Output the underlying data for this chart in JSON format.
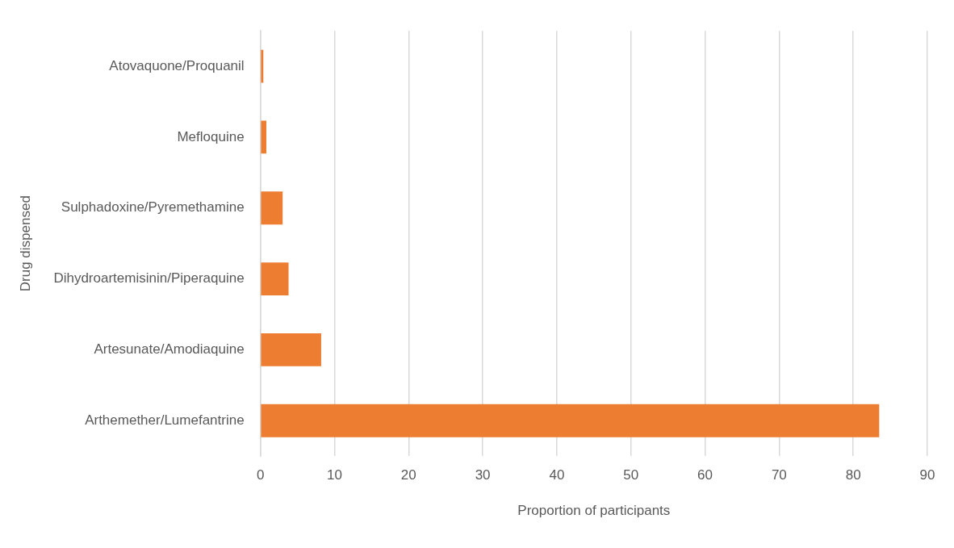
{
  "chart_data": {
    "type": "bar",
    "orientation": "horizontal",
    "categories": [
      "Atovaquone/Proquanil",
      "Mefloquine",
      "Sulphadoxine/Pyremethamine",
      "Dihydroartemisinin/Piperaquine",
      "Artesunate/Amodiaquine",
      "Arthemether/Lumefantrine"
    ],
    "values": [
      0.4,
      0.8,
      3.0,
      3.8,
      8.2,
      83.5
    ],
    "color": "#ed7d31",
    "xlabel": "Proportion of participants",
    "ylabel": "Drug dispensed",
    "xlim": [
      0,
      90
    ],
    "xticks": [
      0,
      10,
      20,
      30,
      40,
      50,
      60,
      70,
      80,
      90
    ],
    "grid": "x",
    "legend": false
  }
}
